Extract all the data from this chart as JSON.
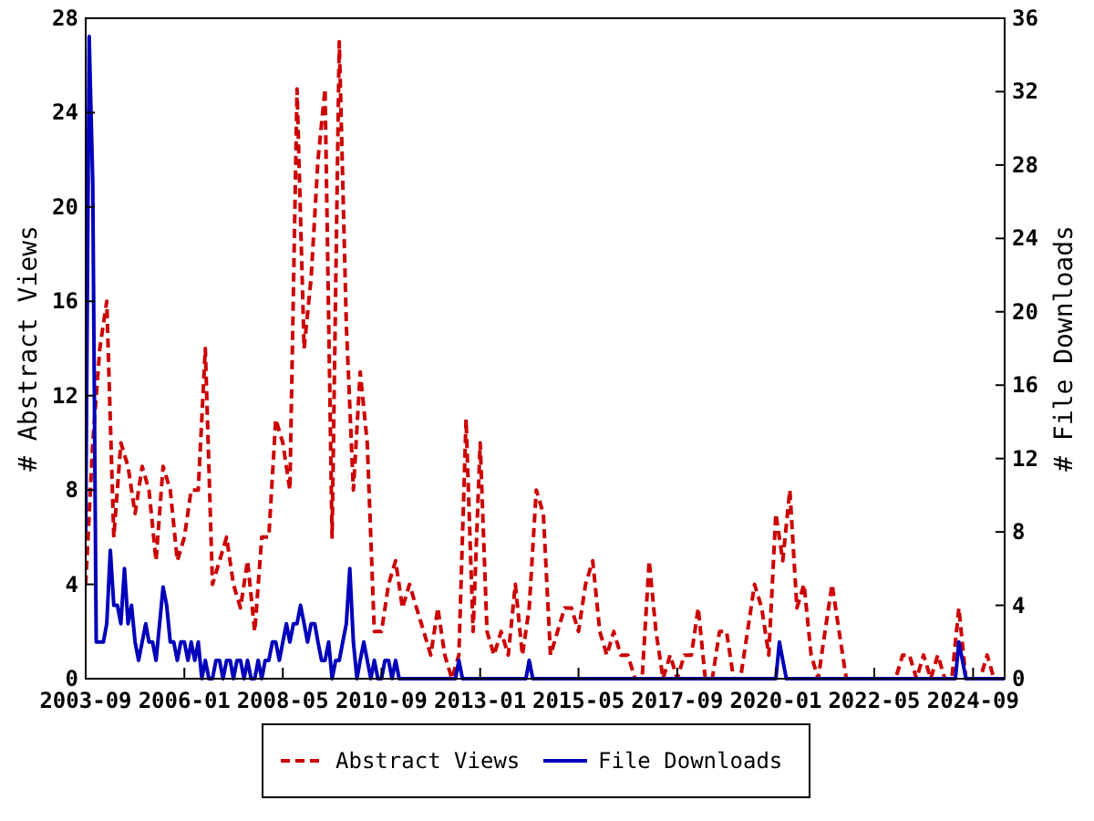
{
  "chart_data": {
    "type": "line",
    "ylabel": "# Abstract Views",
    "y2label": "# File Downloads",
    "xlim": [
      "2003-09",
      "2025-06"
    ],
    "xticks": [
      {
        "value": "2003-09",
        "label": "2003-09"
      },
      {
        "value": "2006-01",
        "label": "2006-01"
      },
      {
        "value": "2008-05",
        "label": "2008-05"
      },
      {
        "value": "2010-09",
        "label": "2010-09"
      },
      {
        "value": "2013-01",
        "label": "2013-01"
      },
      {
        "value": "2015-05",
        "label": "2015-05"
      },
      {
        "value": "2017-09",
        "label": "2017-09"
      },
      {
        "value": "2020-01",
        "label": "2020-01"
      },
      {
        "value": "2022-05",
        "label": "2022-05"
      },
      {
        "value": "2024-09",
        "label": "2024-09"
      }
    ],
    "ylim": [
      0,
      28
    ],
    "yticks": [
      0,
      4,
      8,
      12,
      16,
      20,
      24,
      28
    ],
    "y2lim": [
      0,
      36
    ],
    "y2ticks": [
      0,
      4,
      8,
      12,
      16,
      20,
      24,
      28,
      32,
      36
    ],
    "grid": false,
    "legend": "bottom",
    "series": [
      {
        "name": "Abstract Views",
        "color": "#cc0000",
        "line_style": "dashed",
        "axis": "y",
        "x": [
          "2003-09",
          "2003-11",
          "2004-01",
          "2004-03",
          "2004-05",
          "2004-07",
          "2004-09",
          "2004-11",
          "2005-01",
          "2005-03",
          "2005-05",
          "2005-07",
          "2005-09",
          "2005-11",
          "2006-01",
          "2006-03",
          "2006-05",
          "2006-07",
          "2006-09",
          "2006-11",
          "2007-01",
          "2007-03",
          "2007-05",
          "2007-07",
          "2007-09",
          "2007-11",
          "2008-01",
          "2008-03",
          "2008-05",
          "2008-07",
          "2008-09",
          "2008-11",
          "2009-01",
          "2009-03",
          "2009-05",
          "2009-07",
          "2009-09",
          "2009-11",
          "2010-01",
          "2010-03",
          "2010-05",
          "2010-07",
          "2010-09",
          "2010-11",
          "2011-01",
          "2011-03",
          "2011-05",
          "2011-07",
          "2011-09",
          "2011-11",
          "2012-01",
          "2012-03",
          "2012-05",
          "2012-07",
          "2012-09",
          "2012-11",
          "2013-01",
          "2013-03",
          "2013-05",
          "2013-07",
          "2013-09",
          "2013-11",
          "2014-01",
          "2014-03",
          "2014-05",
          "2014-07",
          "2014-09",
          "2014-11",
          "2015-01",
          "2015-03",
          "2015-05",
          "2015-07",
          "2015-09",
          "2015-11",
          "2016-01",
          "2016-03",
          "2016-05",
          "2016-07",
          "2016-09",
          "2016-11",
          "2017-01",
          "2017-03",
          "2017-05",
          "2017-07",
          "2017-09",
          "2017-11",
          "2018-01",
          "2018-03",
          "2018-05",
          "2018-07",
          "2018-09",
          "2018-11",
          "2019-01",
          "2019-03",
          "2019-05",
          "2019-07",
          "2019-09",
          "2019-11",
          "2020-01",
          "2020-03",
          "2020-05",
          "2020-07",
          "2020-09",
          "2020-11",
          "2021-01",
          "2021-03",
          "2021-05",
          "2021-07",
          "2021-09",
          "2021-11",
          "2022-01",
          "2022-03",
          "2022-05",
          "2022-07",
          "2022-09",
          "2022-11",
          "2023-01",
          "2023-03",
          "2023-05",
          "2023-07",
          "2023-09",
          "2023-11",
          "2024-01",
          "2024-03",
          "2024-05",
          "2024-07",
          "2024-09",
          "2024-11",
          "2025-01",
          "2025-03",
          "2025-05"
        ],
        "values": [
          4,
          10,
          14,
          16,
          6,
          10,
          9,
          7,
          9,
          8,
          5,
          9,
          8,
          5,
          6,
          8,
          8,
          14,
          4,
          5,
          6,
          4,
          3,
          5,
          2,
          6,
          6,
          11,
          10,
          8,
          25,
          14,
          17,
          22,
          25,
          6,
          27,
          15,
          8,
          13,
          10,
          2,
          2,
          4,
          5,
          3,
          4,
          3,
          2,
          1,
          3,
          1,
          0,
          1,
          11,
          2,
          10,
          2,
          1,
          2,
          1,
          4,
          1,
          3,
          8,
          7,
          1,
          2,
          3,
          3,
          2,
          4,
          5,
          2,
          1,
          2,
          1,
          1,
          0,
          0,
          5,
          2,
          0,
          1,
          0,
          1,
          1,
          3,
          0,
          0,
          2,
          2,
          0,
          0,
          2,
          4,
          3,
          1,
          7,
          5,
          8,
          3,
          4,
          1,
          0,
          2,
          4,
          2,
          0,
          0,
          0,
          0,
          0,
          0,
          0,
          0,
          1,
          1,
          0,
          1,
          0,
          1,
          0,
          0,
          3,
          0,
          0,
          0,
          1,
          0,
          0
        ]
      },
      {
        "name": "File Downloads",
        "color": "#0000bb",
        "line_style": "solid",
        "axis": "y2",
        "x": [
          "2003-09",
          "2003-10",
          "2003-11",
          "2003-12",
          "2004-01",
          "2004-02",
          "2004-03",
          "2004-04",
          "2004-05",
          "2004-06",
          "2004-07",
          "2004-08",
          "2004-09",
          "2004-10",
          "2004-11",
          "2004-12",
          "2005-01",
          "2005-02",
          "2005-03",
          "2005-04",
          "2005-05",
          "2005-06",
          "2005-07",
          "2005-08",
          "2005-09",
          "2005-10",
          "2005-11",
          "2005-12",
          "2006-01",
          "2006-02",
          "2006-03",
          "2006-04",
          "2006-05",
          "2006-06",
          "2006-07",
          "2006-08",
          "2006-09",
          "2006-10",
          "2006-11",
          "2006-12",
          "2007-01",
          "2007-02",
          "2007-03",
          "2007-04",
          "2007-05",
          "2007-06",
          "2007-07",
          "2007-08",
          "2007-09",
          "2007-10",
          "2007-11",
          "2007-12",
          "2008-01",
          "2008-02",
          "2008-03",
          "2008-04",
          "2008-05",
          "2008-06",
          "2008-07",
          "2008-08",
          "2008-09",
          "2008-10",
          "2008-11",
          "2008-12",
          "2009-01",
          "2009-02",
          "2009-03",
          "2009-04",
          "2009-05",
          "2009-06",
          "2009-07",
          "2009-08",
          "2009-09",
          "2009-10",
          "2009-11",
          "2009-12",
          "2010-01",
          "2010-02",
          "2010-03",
          "2010-04",
          "2010-05",
          "2010-06",
          "2010-07",
          "2010-08",
          "2010-09",
          "2010-10",
          "2010-11",
          "2010-12",
          "2011-01",
          "2011-02",
          "2011-08",
          "2012-06",
          "2012-07",
          "2012-08",
          "2014-02",
          "2014-03",
          "2014-04",
          "2020-01",
          "2020-02",
          "2020-03",
          "2020-04",
          "2024-04",
          "2024-05",
          "2024-06",
          "2024-07",
          "2025-06"
        ],
        "values": [
          8,
          35,
          27,
          2,
          2,
          2,
          3,
          7,
          4,
          4,
          3,
          6,
          3,
          4,
          2,
          1,
          2,
          3,
          2,
          2,
          1,
          3,
          5,
          4,
          2,
          2,
          1,
          2,
          2,
          1,
          2,
          1,
          2,
          0,
          1,
          0,
          0,
          1,
          1,
          0,
          1,
          1,
          0,
          1,
          1,
          0,
          1,
          0,
          0,
          1,
          0,
          1,
          1,
          2,
          2,
          1,
          2,
          3,
          2,
          3,
          3,
          4,
          3,
          2,
          3,
          3,
          2,
          1,
          1,
          2,
          0,
          1,
          1,
          2,
          3,
          6,
          2,
          0,
          1,
          2,
          1,
          0,
          1,
          0,
          0,
          1,
          1,
          0,
          1,
          0,
          0,
          0,
          1,
          0,
          0,
          1,
          0,
          0,
          2,
          1,
          0,
          0,
          2,
          1,
          0,
          0
        ]
      }
    ]
  }
}
